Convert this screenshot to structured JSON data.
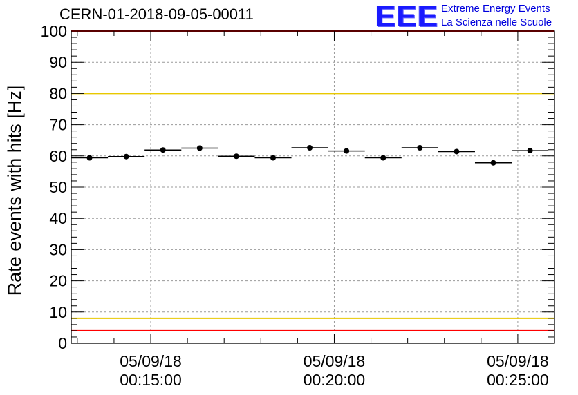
{
  "header": {
    "run_title": "CERN-01-2018-09-05-00011",
    "logo_mark": "EEE",
    "logo_line1": "Extreme Energy Events",
    "logo_line2": "La Scienza nelle Scuole"
  },
  "chart_data": {
    "type": "scatter",
    "ylabel": "Rate events with hits [Hz]",
    "ylim": [
      0,
      100
    ],
    "y_ticks": [
      "0",
      "10",
      "20",
      "30",
      "40",
      "50",
      "60",
      "70",
      "80",
      "90",
      "100"
    ],
    "x_time_range": [
      "00:12:50",
      "00:26:00"
    ],
    "x_tick_labels": [
      {
        "date": "05/09/18",
        "time": "00:15:00"
      },
      {
        "date": "05/09/18",
        "time": "00:20:00"
      },
      {
        "date": "05/09/18",
        "time": "00:25:00"
      }
    ],
    "grid": true,
    "reference_lines": [
      {
        "y": 100,
        "color": "#ff0000"
      },
      {
        "y": 80,
        "color": "#e8c800"
      },
      {
        "y": 8,
        "color": "#e8c800"
      },
      {
        "y": 4,
        "color": "#ff0000"
      }
    ],
    "series": [
      {
        "bin_width_s": 60,
        "marker_color": "#000000",
        "times": [
          "00:13:20",
          "00:14:20",
          "00:15:20",
          "00:16:20",
          "00:17:20",
          "00:18:20",
          "00:19:20",
          "00:20:20",
          "00:21:20",
          "00:22:20",
          "00:23:20",
          "00:24:20",
          "00:25:20"
        ],
        "values": [
          59.4,
          59.8,
          61.9,
          62.5,
          59.9,
          59.4,
          62.6,
          61.6,
          59.4,
          62.6,
          61.4,
          57.8,
          61.7
        ],
        "errors": [
          0.5,
          0.5,
          0.5,
          0.5,
          0.5,
          0.5,
          0.5,
          0.5,
          0.5,
          0.5,
          0.5,
          0.5,
          0.5
        ]
      }
    ]
  }
}
